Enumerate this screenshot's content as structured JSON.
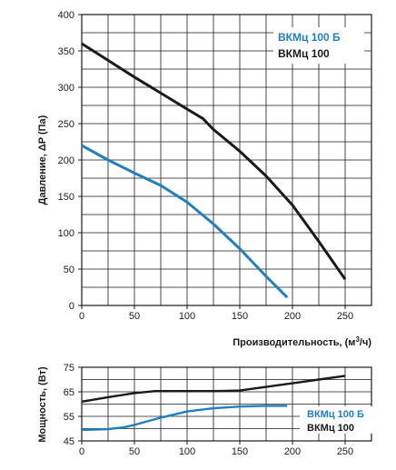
{
  "colors": {
    "blue": "#1f7fc1",
    "black": "#1a1a1a"
  },
  "chart_data": [
    {
      "type": "line",
      "title": "",
      "xlabel": "Производительность, (м³/ч)",
      "ylabel": "Давление, ΔP (Па)",
      "xlim": [
        0,
        275
      ],
      "ylim": [
        0,
        400
      ],
      "xticks": [
        "0",
        "50",
        "100",
        "150",
        "200",
        "250"
      ],
      "yticks": [
        "0",
        "50",
        "100",
        "150",
        "200",
        "250",
        "300",
        "350",
        "400"
      ],
      "grid": true,
      "legend_position": "top-right",
      "series": [
        {
          "name": "ВКМц 100 Б",
          "color": "#1f7fc1",
          "points": [
            [
              0,
              220
            ],
            [
              25,
              200
            ],
            [
              50,
              182
            ],
            [
              75,
              165
            ],
            [
              100,
              142
            ],
            [
              125,
              112
            ],
            [
              150,
              78
            ],
            [
              175,
              40
            ],
            [
              195,
              11
            ]
          ]
        },
        {
          "name": "ВКМц 100",
          "color": "#1a1a1a",
          "points": [
            [
              0,
              360
            ],
            [
              25,
              337
            ],
            [
              50,
              314
            ],
            [
              75,
              292
            ],
            [
              100,
              270
            ],
            [
              115,
              257
            ],
            [
              125,
              242
            ],
            [
              150,
              212
            ],
            [
              175,
              178
            ],
            [
              200,
              138
            ],
            [
              225,
              88
            ],
            [
              250,
              36
            ]
          ]
        }
      ]
    },
    {
      "type": "line",
      "title": "",
      "xlabel": "",
      "ylabel": "Мощность, (Вт)",
      "xlim": [
        0,
        275
      ],
      "ylim": [
        45,
        75
      ],
      "xticks": [
        "0",
        "50",
        "100",
        "150",
        "200",
        "250"
      ],
      "yticks": [
        "45",
        "55",
        "65",
        "75"
      ],
      "grid": true,
      "legend_position": "right",
      "series": [
        {
          "name": "ВКМц 100 Б",
          "color": "#1f7fc1",
          "points": [
            [
              0,
              49.5
            ],
            [
              25,
              49.8
            ],
            [
              40,
              50.5
            ],
            [
              50,
              51.5
            ],
            [
              75,
              54.5
            ],
            [
              100,
              57
            ],
            [
              125,
              58.3
            ],
            [
              150,
              59
            ],
            [
              175,
              59.3
            ],
            [
              195,
              59.3
            ]
          ]
        },
        {
          "name": "ВКМц 100",
          "color": "#1a1a1a",
          "points": [
            [
              0,
              61
            ],
            [
              25,
              62.8
            ],
            [
              50,
              64.5
            ],
            [
              70,
              65.3
            ],
            [
              100,
              65.3
            ],
            [
              125,
              65.3
            ],
            [
              150,
              65.5
            ],
            [
              175,
              67
            ],
            [
              200,
              68.5
            ],
            [
              225,
              70
            ],
            [
              250,
              71.5
            ]
          ]
        }
      ]
    }
  ]
}
